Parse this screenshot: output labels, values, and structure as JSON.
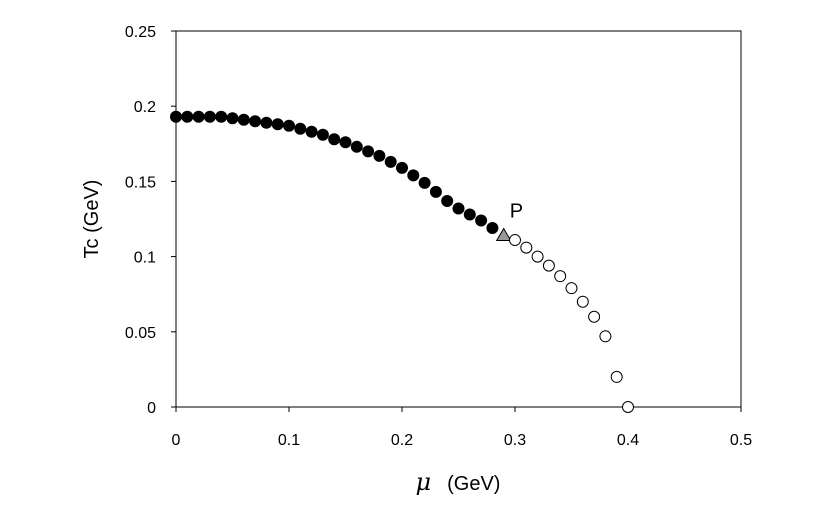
{
  "chart_data": {
    "type": "scatter",
    "xlabel_symbol": "μ",
    "xlabel_unit": "(GeV)",
    "ylabel": "Tc (GeV)",
    "xlim": [
      0,
      0.5
    ],
    "ylim": [
      0,
      0.25
    ],
    "x_ticks": [
      "0",
      "0.1",
      "0.2",
      "0.3",
      "0.4",
      "0.5"
    ],
    "y_ticks": [
      "0",
      "0.05",
      "0.1",
      "0.15",
      "0.2",
      "0.25"
    ],
    "grid": false,
    "series": [
      {
        "marker": "filled-circle",
        "points": [
          [
            0.0,
            0.193
          ],
          [
            0.01,
            0.193
          ],
          [
            0.02,
            0.193
          ],
          [
            0.03,
            0.193
          ],
          [
            0.04,
            0.193
          ],
          [
            0.05,
            0.192
          ],
          [
            0.06,
            0.191
          ],
          [
            0.07,
            0.19
          ],
          [
            0.08,
            0.189
          ],
          [
            0.09,
            0.188
          ],
          [
            0.1,
            0.187
          ],
          [
            0.11,
            0.185
          ],
          [
            0.12,
            0.183
          ],
          [
            0.13,
            0.181
          ],
          [
            0.14,
            0.178
          ],
          [
            0.15,
            0.176
          ],
          [
            0.16,
            0.173
          ],
          [
            0.17,
            0.17
          ],
          [
            0.18,
            0.167
          ],
          [
            0.19,
            0.163
          ],
          [
            0.2,
            0.159
          ],
          [
            0.21,
            0.154
          ],
          [
            0.22,
            0.149
          ],
          [
            0.23,
            0.143
          ],
          [
            0.24,
            0.137
          ],
          [
            0.25,
            0.132
          ],
          [
            0.26,
            0.128
          ],
          [
            0.27,
            0.124
          ],
          [
            0.28,
            0.119
          ]
        ]
      },
      {
        "marker": "triangle",
        "points": [
          [
            0.29,
            0.114
          ]
        ]
      },
      {
        "marker": "open-circle",
        "points": [
          [
            0.3,
            0.111
          ],
          [
            0.31,
            0.106
          ],
          [
            0.32,
            0.1
          ],
          [
            0.33,
            0.094
          ],
          [
            0.34,
            0.087
          ],
          [
            0.35,
            0.079
          ],
          [
            0.36,
            0.07
          ],
          [
            0.37,
            0.06
          ],
          [
            0.38,
            0.047
          ],
          [
            0.39,
            0.02
          ],
          [
            0.4,
            0.0
          ]
        ]
      }
    ],
    "annotations": [
      {
        "text": "P",
        "x": 0.29,
        "y": 0.114
      }
    ]
  }
}
